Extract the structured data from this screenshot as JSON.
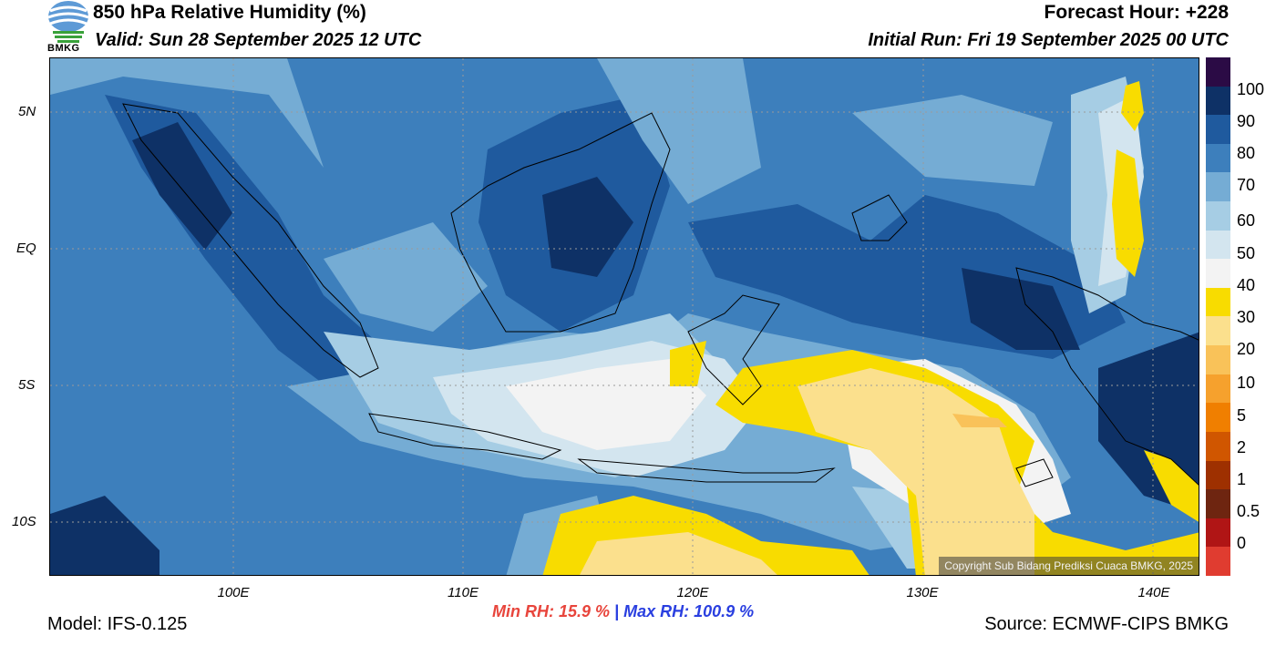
{
  "header": {
    "title": "850 hPa Relative Humidity (%)",
    "valid": "Valid: Sun 28 September 2025 12 UTC",
    "forecast_hour": "Forecast Hour: +228",
    "initial_run": "Initial Run: Fri 19 September 2025 00 UTC",
    "logo_text": "BMKG"
  },
  "map": {
    "y_labels": [
      "5N",
      "EQ",
      "5S",
      "10S"
    ],
    "x_labels": [
      "100E",
      "110E",
      "120E",
      "130E",
      "140E"
    ],
    "copyright": "Copyright Sub Bidang Prediksi Cuaca BMKG, 2025",
    "region": "Indonesia"
  },
  "colorbar": {
    "labels": [
      "100",
      "90",
      "80",
      "70",
      "60",
      "50",
      "40",
      "30",
      "20",
      "10",
      "5",
      "2",
      "1",
      "0.5",
      "0"
    ],
    "colors": [
      "#2b0b45",
      "#0e3166",
      "#1f5a9e",
      "#3d7fbc",
      "#75acd4",
      "#a6cde4",
      "#d3e5ef",
      "#f3f3f3",
      "#f8dc00",
      "#fbe08d",
      "#f9c259",
      "#f6a12d",
      "#f07f00",
      "#d05600",
      "#9e3000",
      "#6e2510",
      "#b01515",
      "#e03c30"
    ]
  },
  "stats": {
    "min": "Min RH:  15.9 %",
    "separator": "|",
    "max": "Max RH: 100.9 %"
  },
  "footer": {
    "model": "Model: IFS-0.125",
    "source": "Source: ECMWF-CIPS BMKG"
  }
}
